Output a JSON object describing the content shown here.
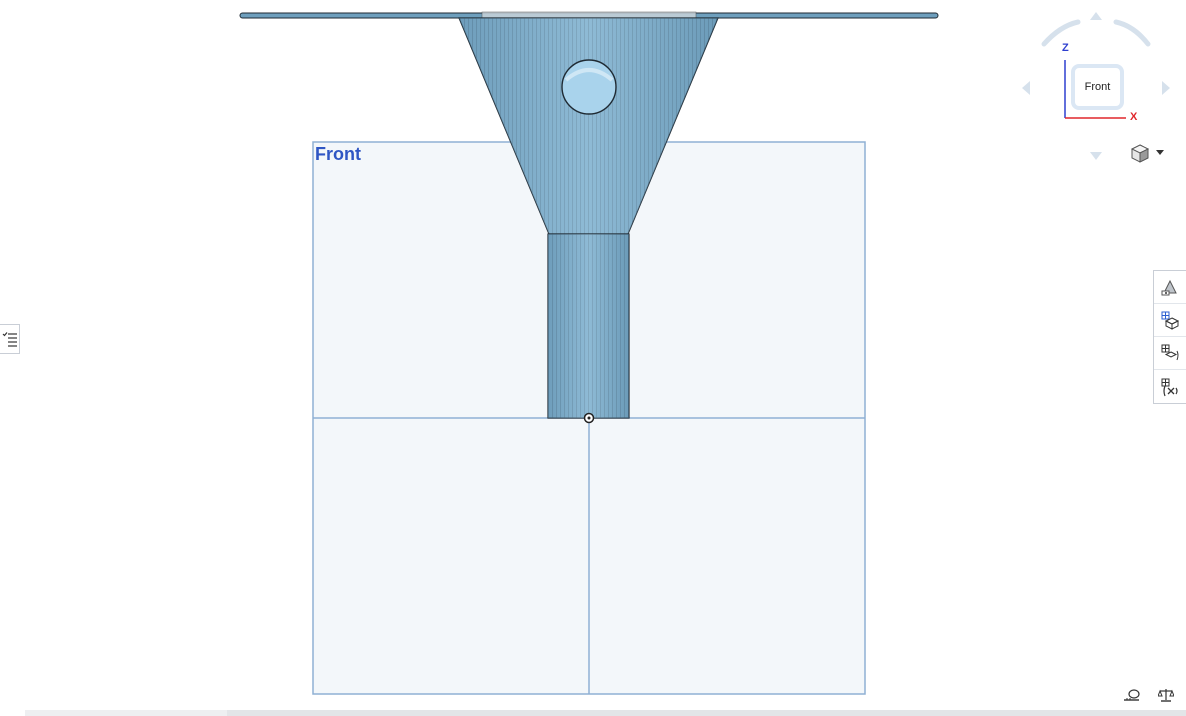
{
  "viewport": {
    "plane_label": "Front"
  },
  "view_cube": {
    "face_label": "Front",
    "axis_z": "Z",
    "axis_x": "X"
  },
  "colors": {
    "plane_fill": "#f3f7fa",
    "plane_border": "#8fb0d4",
    "plane_label": "#2f56c4",
    "model_fill": "#6e9fbd",
    "model_edge": "#1f2a33",
    "axis_z": "#2e3fcf",
    "axis_x": "#e0262b"
  },
  "toolbar": {
    "items": [
      "appearance-icon",
      "display-states-icon",
      "view-config-icon",
      "variables-icon"
    ]
  },
  "bottom_right": {
    "items": [
      "measure-tape-icon",
      "mass-properties-icon"
    ]
  }
}
